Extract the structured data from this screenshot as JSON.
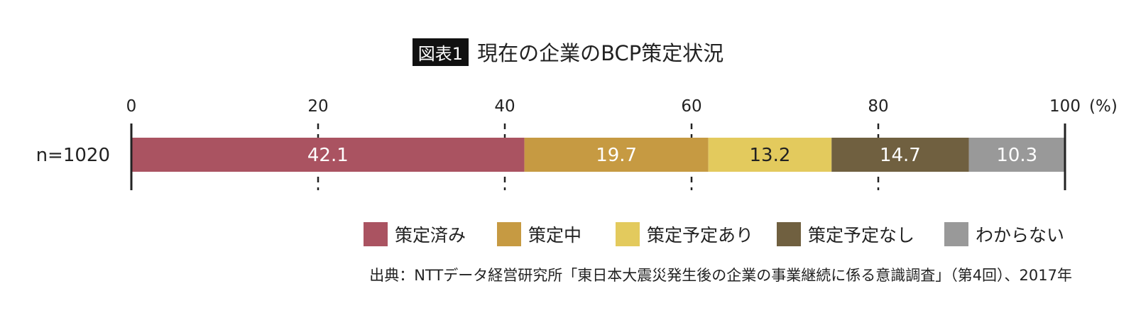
{
  "figure_label": "図表1",
  "chart_data": {
    "type": "bar",
    "orientation": "horizontal",
    "stacked": true,
    "title": "現在の企業のBCP策定状況",
    "categories": [
      "n=1020"
    ],
    "series": [
      {
        "name": "策定済み",
        "values": [
          42.1
        ],
        "color": "#aa5361"
      },
      {
        "name": "策定中",
        "values": [
          19.7
        ],
        "color": "#c69a42"
      },
      {
        "name": "策定予定あり",
        "values": [
          13.2
        ],
        "color": "#e3ca5d"
      },
      {
        "name": "策定予定なし",
        "values": [
          14.7
        ],
        "color": "#706040"
      },
      {
        "name": "わからない",
        "values": [
          10.3
        ],
        "color": "#999999"
      }
    ],
    "data_label_colors": [
      "#ffffff",
      "#ffffff",
      "#222222",
      "#ffffff",
      "#ffffff"
    ],
    "x_ticks": [
      "0",
      "20",
      "40",
      "60",
      "80",
      "100"
    ],
    "x_unit": "(%)",
    "xlim": [
      0,
      100
    ],
    "grid": "dashed vertical at 20, 40, 60, 80",
    "legend": "bottom-right"
  },
  "source": "出典：NTTデータ経営研究所「東日本大震災発生後の企業の事業継続に係る意識調査」（第4回）、2017年"
}
